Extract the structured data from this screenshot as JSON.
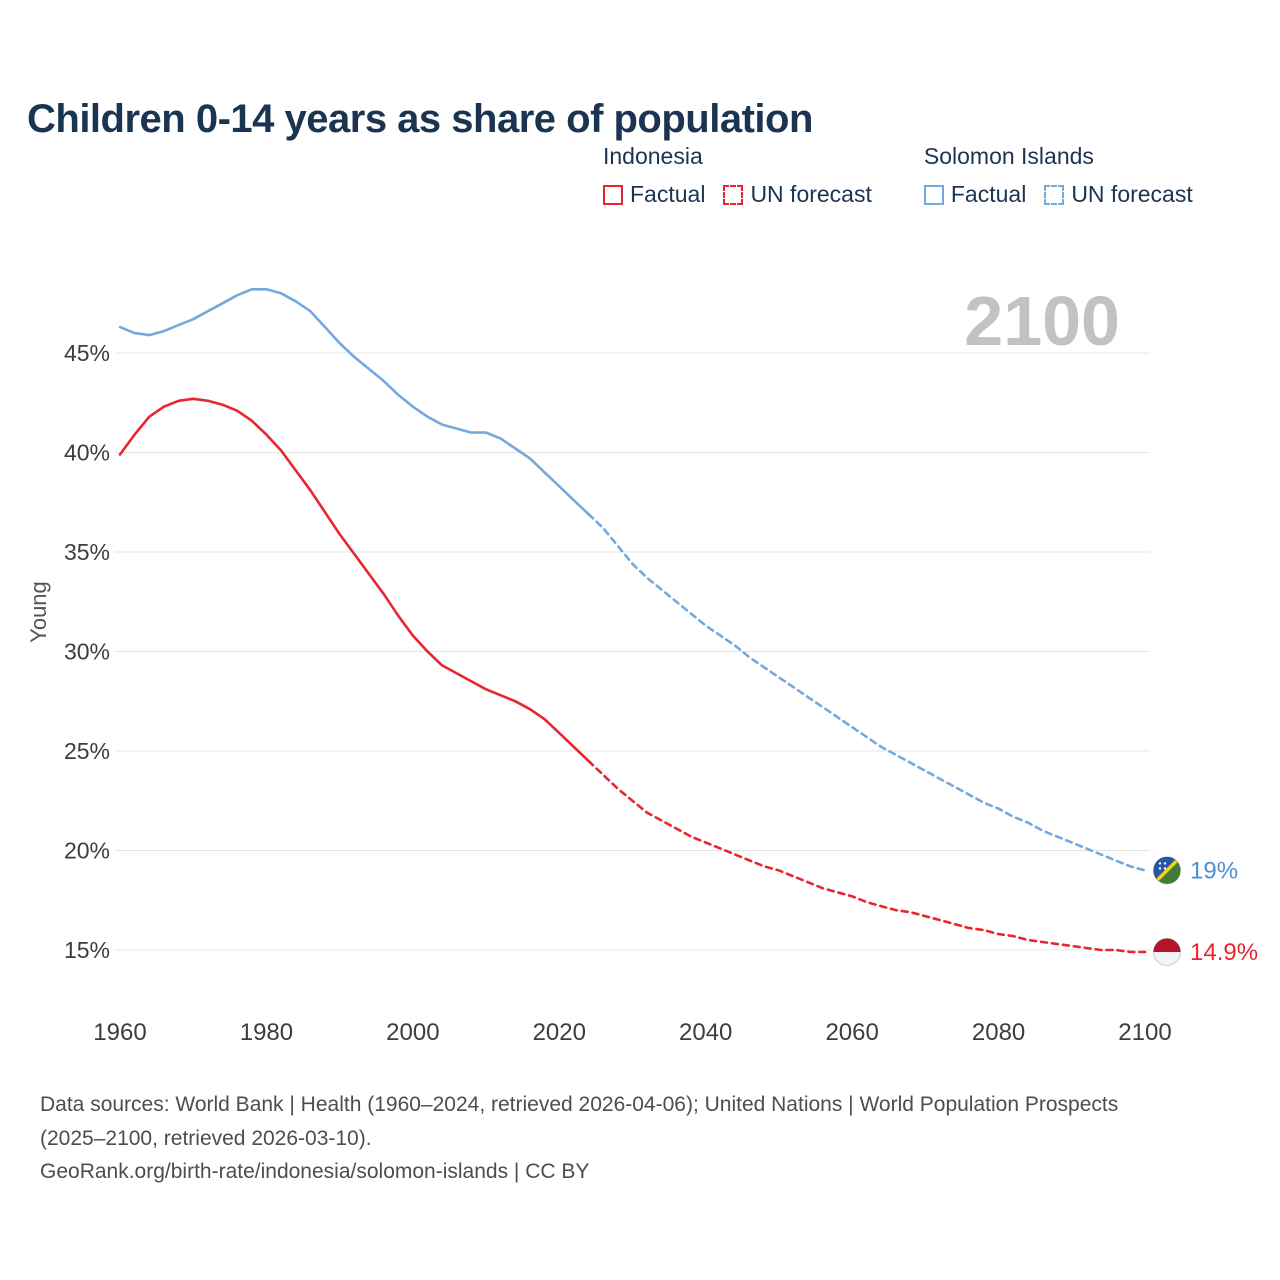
{
  "title": "Children 0-14 years as share of population",
  "watermark": "2100",
  "legend": {
    "groups": [
      {
        "name": "Indonesia",
        "color": "#e8262d",
        "items": [
          {
            "label": "Factual",
            "style": "solid"
          },
          {
            "label": "UN forecast",
            "style": "dashed"
          }
        ]
      },
      {
        "name": "Solomon Islands",
        "color": "#74a9dd",
        "items": [
          {
            "label": "Factual",
            "style": "solid"
          },
          {
            "label": "UN forecast",
            "style": "dashed"
          }
        ]
      }
    ]
  },
  "chart_data": {
    "type": "line",
    "title": "Children 0-14 years as share of population",
    "xlabel": "",
    "ylabel": "Young",
    "xlim": [
      1955,
      2115
    ],
    "ylim": [
      13,
      49.5
    ],
    "xticks": [
      1960,
      1980,
      2000,
      2020,
      2040,
      2060,
      2080,
      2100
    ],
    "yticks": [
      15,
      20,
      25,
      30,
      35,
      40,
      45
    ],
    "grid": "horizontal",
    "legend_position": "top-right",
    "series": [
      {
        "name": "Solomon Islands Factual",
        "color": "#74a9dd",
        "style": "solid",
        "points": [
          [
            1960,
            46.3
          ],
          [
            1962,
            46.0
          ],
          [
            1964,
            45.9
          ],
          [
            1966,
            46.1
          ],
          [
            1968,
            46.4
          ],
          [
            1970,
            46.7
          ],
          [
            1972,
            47.1
          ],
          [
            1974,
            47.5
          ],
          [
            1976,
            47.9
          ],
          [
            1978,
            48.2
          ],
          [
            1980,
            48.2
          ],
          [
            1982,
            48.0
          ],
          [
            1984,
            47.6
          ],
          [
            1986,
            47.1
          ],
          [
            1988,
            46.3
          ],
          [
            1990,
            45.5
          ],
          [
            1992,
            44.8
          ],
          [
            1994,
            44.2
          ],
          [
            1996,
            43.6
          ],
          [
            1998,
            42.9
          ],
          [
            2000,
            42.3
          ],
          [
            2002,
            41.8
          ],
          [
            2004,
            41.4
          ],
          [
            2006,
            41.2
          ],
          [
            2008,
            41.0
          ],
          [
            2010,
            41.0
          ],
          [
            2012,
            40.7
          ],
          [
            2014,
            40.2
          ],
          [
            2016,
            39.7
          ],
          [
            2018,
            39.0
          ],
          [
            2020,
            38.3
          ],
          [
            2022,
            37.6
          ],
          [
            2024,
            36.9
          ]
        ]
      },
      {
        "name": "Solomon Islands UN forecast",
        "color": "#74a9dd",
        "style": "dashed",
        "points": [
          [
            2024,
            36.9
          ],
          [
            2026,
            36.2
          ],
          [
            2028,
            35.3
          ],
          [
            2030,
            34.4
          ],
          [
            2032,
            33.7
          ],
          [
            2034,
            33.1
          ],
          [
            2036,
            32.5
          ],
          [
            2038,
            31.9
          ],
          [
            2040,
            31.3
          ],
          [
            2042,
            30.8
          ],
          [
            2044,
            30.3
          ],
          [
            2046,
            29.7
          ],
          [
            2048,
            29.2
          ],
          [
            2050,
            28.7
          ],
          [
            2052,
            28.2
          ],
          [
            2054,
            27.7
          ],
          [
            2056,
            27.2
          ],
          [
            2058,
            26.7
          ],
          [
            2060,
            26.2
          ],
          [
            2062,
            25.7
          ],
          [
            2064,
            25.2
          ],
          [
            2066,
            24.8
          ],
          [
            2068,
            24.4
          ],
          [
            2070,
            24.0
          ],
          [
            2072,
            23.6
          ],
          [
            2074,
            23.2
          ],
          [
            2076,
            22.8
          ],
          [
            2078,
            22.4
          ],
          [
            2080,
            22.1
          ],
          [
            2082,
            21.7
          ],
          [
            2084,
            21.4
          ],
          [
            2086,
            21.0
          ],
          [
            2088,
            20.7
          ],
          [
            2090,
            20.4
          ],
          [
            2092,
            20.1
          ],
          [
            2094,
            19.8
          ],
          [
            2096,
            19.5
          ],
          [
            2098,
            19.2
          ],
          [
            2100,
            19.0
          ]
        ]
      },
      {
        "name": "Indonesia Factual",
        "color": "#e8262d",
        "style": "solid",
        "points": [
          [
            1960,
            39.9
          ],
          [
            1962,
            40.9
          ],
          [
            1964,
            41.8
          ],
          [
            1966,
            42.3
          ],
          [
            1968,
            42.6
          ],
          [
            1970,
            42.7
          ],
          [
            1972,
            42.6
          ],
          [
            1974,
            42.4
          ],
          [
            1976,
            42.1
          ],
          [
            1978,
            41.6
          ],
          [
            1980,
            40.9
          ],
          [
            1982,
            40.1
          ],
          [
            1984,
            39.1
          ],
          [
            1986,
            38.1
          ],
          [
            1988,
            37.0
          ],
          [
            1990,
            35.9
          ],
          [
            1992,
            34.9
          ],
          [
            1994,
            33.9
          ],
          [
            1996,
            32.9
          ],
          [
            1998,
            31.8
          ],
          [
            2000,
            30.8
          ],
          [
            2002,
            30.0
          ],
          [
            2004,
            29.3
          ],
          [
            2006,
            28.9
          ],
          [
            2008,
            28.5
          ],
          [
            2010,
            28.1
          ],
          [
            2012,
            27.8
          ],
          [
            2014,
            27.5
          ],
          [
            2016,
            27.1
          ],
          [
            2018,
            26.6
          ],
          [
            2020,
            25.9
          ],
          [
            2022,
            25.2
          ],
          [
            2024,
            24.5
          ]
        ]
      },
      {
        "name": "Indonesia UN forecast",
        "color": "#e8262d",
        "style": "dashed",
        "points": [
          [
            2024,
            24.5
          ],
          [
            2026,
            23.8
          ],
          [
            2028,
            23.1
          ],
          [
            2030,
            22.5
          ],
          [
            2032,
            21.9
          ],
          [
            2034,
            21.5
          ],
          [
            2036,
            21.1
          ],
          [
            2038,
            20.7
          ],
          [
            2040,
            20.4
          ],
          [
            2042,
            20.1
          ],
          [
            2044,
            19.8
          ],
          [
            2046,
            19.5
          ],
          [
            2048,
            19.2
          ],
          [
            2050,
            19.0
          ],
          [
            2052,
            18.7
          ],
          [
            2054,
            18.4
          ],
          [
            2056,
            18.1
          ],
          [
            2058,
            17.9
          ],
          [
            2060,
            17.7
          ],
          [
            2062,
            17.4
          ],
          [
            2064,
            17.2
          ],
          [
            2066,
            17.0
          ],
          [
            2068,
            16.9
          ],
          [
            2070,
            16.7
          ],
          [
            2072,
            16.5
          ],
          [
            2074,
            16.3
          ],
          [
            2076,
            16.1
          ],
          [
            2078,
            16.0
          ],
          [
            2080,
            15.8
          ],
          [
            2082,
            15.7
          ],
          [
            2084,
            15.5
          ],
          [
            2086,
            15.4
          ],
          [
            2088,
            15.3
          ],
          [
            2090,
            15.2
          ],
          [
            2092,
            15.1
          ],
          [
            2094,
            15.0
          ],
          [
            2096,
            15.0
          ],
          [
            2098,
            14.9
          ],
          [
            2100,
            14.9
          ]
        ]
      }
    ],
    "end_labels": [
      {
        "text": "19%",
        "value": 19.0,
        "color": "#4a90d9",
        "flag": "solomon-islands-flag"
      },
      {
        "text": "14.9%",
        "value": 14.9,
        "color": "#e8262d",
        "flag": "indonesia-flag"
      }
    ]
  },
  "colors": {
    "indonesia": "#e8262d",
    "solomon_islands": "#74a9dd",
    "title": "#1b3551",
    "gridline": "#e4e4e4",
    "watermark": "#c2c2c2",
    "axis_text": "#3d3d3d"
  },
  "footer": {
    "line1": "Data sources: World Bank | Health (1960–2024, retrieved 2026-04-06); United Nations | World Population Prospects (2025–2100, retrieved 2026-03-10).",
    "line2": "GeoRank.org/birth-rate/indonesia/solomon-islands | CC BY"
  }
}
